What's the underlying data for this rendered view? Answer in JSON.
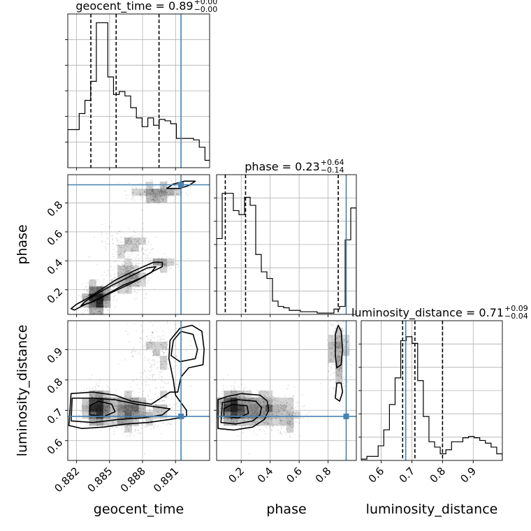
{
  "chart_data": {
    "type": "corner",
    "parameters": [
      "geocent_time",
      "phase",
      "luminosity_distance"
    ],
    "truths": {
      "geocent_time": 0.8915,
      "phase": 0.925,
      "luminosity_distance": 0.68
    },
    "colors": {
      "truth": "#4682b4",
      "hist": "#000000",
      "grid": "#b0b0b0",
      "frame": "#000000"
    },
    "axes": {
      "geocent_time": {
        "lim": [
          0.8812,
          0.8941
        ],
        "ticks": [
          0.882,
          0.885,
          0.888,
          0.891
        ],
        "tick_labels": [
          "0.882",
          "0.885",
          "0.888",
          "0.891"
        ]
      },
      "phase": {
        "lim": [
          0.03,
          0.995
        ],
        "ticks": [
          0.2,
          0.4,
          0.6,
          0.8
        ],
        "tick_labels": [
          "0.2",
          "0.4",
          "0.6",
          "0.8"
        ]
      },
      "luminosity_distance": {
        "lim": [
          0.535,
          0.995
        ],
        "ticks": [
          0.6,
          0.7,
          0.8,
          0.9
        ],
        "tick_labels": [
          "0.6",
          "0.7",
          "0.8",
          "0.9"
        ]
      }
    },
    "titles": {
      "geocent_time": {
        "main": "geocent_time = 0.89",
        "plus": "+0.00",
        "minus": "−0.00"
      },
      "phase": {
        "main": "phase = 0.23",
        "plus": "+0.64",
        "minus": "−0.14"
      },
      "luminosity_distance": {
        "main": "luminosity_distance = 0.71",
        "plus": "+0.09",
        "minus": "−0.04"
      }
    },
    "hist1d": {
      "geocent_time": {
        "edges": [
          0.8812,
          0.88172,
          0.88224,
          0.88276,
          0.88328,
          0.8838,
          0.88432,
          0.88484,
          0.88536,
          0.88588,
          0.8864,
          0.88692,
          0.88744,
          0.88796,
          0.88848,
          0.889,
          0.88952,
          0.89004,
          0.89056,
          0.89108,
          0.8916,
          0.89212,
          0.89264,
          0.89316,
          0.89368,
          0.8942
        ],
        "counts": [
          0.26,
          0.26,
          0.37,
          0.46,
          0.59,
          0.99,
          0.99,
          0.62,
          0.5,
          0.52,
          0.49,
          0.41,
          0.34,
          0.28,
          0.34,
          0.29,
          0.33,
          0.32,
          0.3,
          0.2,
          0.2,
          0.2,
          0.19,
          0.14,
          0.05
        ],
        "quantiles": [
          0.8833,
          0.8856,
          0.8895
        ]
      },
      "phase": {
        "edges": [
          0.03,
          0.0686,
          0.1072,
          0.1458,
          0.1844,
          0.223,
          0.2616,
          0.3002,
          0.3388,
          0.3774,
          0.416,
          0.4546,
          0.4932,
          0.5318,
          0.5704,
          0.609,
          0.6476,
          0.6862,
          0.7248,
          0.7634,
          0.802,
          0.8406,
          0.8792,
          0.9178,
          0.9564,
          0.995
        ],
        "counts": [
          0.57,
          0.91,
          0.91,
          0.78,
          0.75,
          0.88,
          0.82,
          0.45,
          0.32,
          0.27,
          0.1,
          0.06,
          0.05,
          0.03,
          0.03,
          0.02,
          0.02,
          0.02,
          0.01,
          0.01,
          0.01,
          0.04,
          0.06,
          0.56,
          0.8
        ],
        "quantiles": [
          0.09,
          0.23,
          0.87
        ]
      },
      "luminosity_distance": {
        "edges": [
          0.535,
          0.5534,
          0.5718,
          0.5902,
          0.6086,
          0.627,
          0.6454,
          0.6638,
          0.6822,
          0.7006,
          0.719,
          0.7374,
          0.7558,
          0.7742,
          0.7926,
          0.811,
          0.8294,
          0.8478,
          0.8662,
          0.8846,
          0.903,
          0.9214,
          0.9398,
          0.9582,
          0.9766,
          0.995
        ],
        "counts": [
          0.01,
          0.03,
          0.03,
          0.11,
          0.23,
          0.42,
          0.62,
          0.9,
          0.93,
          0.88,
          0.6,
          0.33,
          0.14,
          0.1,
          0.05,
          0.08,
          0.14,
          0.14,
          0.17,
          0.18,
          0.17,
          0.15,
          0.13,
          0.1,
          0.05
        ],
        "quantiles": [
          0.67,
          0.71,
          0.8
        ]
      }
    },
    "density_components": [
      {
        "mean": {
          "geocent_time": 0.8839,
          "phase": 0.14,
          "luminosity_distance": 0.71
        },
        "sd": {
          "geocent_time": 0.0006,
          "phase": 0.05,
          "luminosity_distance": 0.028
        },
        "weight": 0.38
      },
      {
        "mean": {
          "geocent_time": 0.8866,
          "phase": 0.29,
          "luminosity_distance": 0.7
        },
        "sd": {
          "geocent_time": 0.0009,
          "phase": 0.06,
          "luminosity_distance": 0.03
        },
        "weight": 0.22
      },
      {
        "mean": {
          "geocent_time": 0.8897,
          "phase": 0.38,
          "luminosity_distance": 0.7
        },
        "sd": {
          "geocent_time": 0.0007,
          "phase": 0.025,
          "luminosity_distance": 0.03
        },
        "weight": 0.08
      },
      {
        "mean": {
          "geocent_time": 0.8893,
          "phase": 0.87,
          "luminosity_distance": 0.89
        },
        "sd": {
          "geocent_time": 0.0012,
          "phase": 0.035,
          "luminosity_distance": 0.06
        },
        "weight": 0.2
      },
      {
        "mean": {
          "geocent_time": 0.8868,
          "phase": 0.51,
          "luminosity_distance": 0.69
        },
        "sd": {
          "geocent_time": 0.0012,
          "phase": 0.05,
          "luminosity_distance": 0.035
        },
        "weight": 0.12
      }
    ],
    "contours": {
      "phase|geocent_time": [
        [
          [
            0.8818,
            0.06
          ],
          [
            0.8828,
            0.1
          ],
          [
            0.8838,
            0.13
          ],
          [
            0.885,
            0.18
          ],
          [
            0.8862,
            0.23
          ],
          [
            0.8878,
            0.28
          ],
          [
            0.889,
            0.33
          ],
          [
            0.8898,
            0.36
          ],
          [
            0.8898,
            0.39
          ],
          [
            0.889,
            0.39
          ],
          [
            0.8872,
            0.33
          ],
          [
            0.8856,
            0.27
          ],
          [
            0.8842,
            0.2
          ],
          [
            0.8832,
            0.15
          ],
          [
            0.882,
            0.1
          ],
          [
            0.8815,
            0.07
          ]
        ],
        [
          [
            0.8824,
            0.09
          ],
          [
            0.8836,
            0.12
          ],
          [
            0.8846,
            0.16
          ],
          [
            0.886,
            0.21
          ],
          [
            0.8874,
            0.26
          ],
          [
            0.8888,
            0.32
          ],
          [
            0.8892,
            0.36
          ],
          [
            0.8884,
            0.35
          ],
          [
            0.8868,
            0.29
          ],
          [
            0.8852,
            0.23
          ],
          [
            0.8838,
            0.17
          ],
          [
            0.8828,
            0.12
          ]
        ],
        [
          [
            0.8914,
            0.9
          ],
          [
            0.8922,
            0.92
          ],
          [
            0.8928,
            0.95
          ],
          [
            0.8918,
            0.95
          ],
          [
            0.8908,
            0.93
          ],
          [
            0.8902,
            0.9
          ]
        ]
      ],
      "luminosity_distance|geocent_time": [
        [
          [
            0.8813,
            0.65
          ],
          [
            0.8825,
            0.64
          ],
          [
            0.8845,
            0.645
          ],
          [
            0.8865,
            0.655
          ],
          [
            0.8885,
            0.66
          ],
          [
            0.8905,
            0.67
          ],
          [
            0.892,
            0.68
          ],
          [
            0.892,
            0.7
          ],
          [
            0.891,
            0.75
          ],
          [
            0.8908,
            0.8
          ],
          [
            0.8904,
            0.87
          ],
          [
            0.8905,
            0.93
          ],
          [
            0.8914,
            0.97
          ],
          [
            0.8925,
            0.98
          ],
          [
            0.8934,
            0.96
          ],
          [
            0.8936,
            0.9
          ],
          [
            0.8935,
            0.85
          ],
          [
            0.8922,
            0.84
          ],
          [
            0.8915,
            0.81
          ],
          [
            0.8912,
            0.76
          ],
          [
            0.8905,
            0.76
          ],
          [
            0.8888,
            0.72
          ],
          [
            0.887,
            0.73
          ],
          [
            0.8855,
            0.75
          ],
          [
            0.8835,
            0.76
          ],
          [
            0.8815,
            0.755
          ]
        ],
        [
          [
            0.8815,
            0.665
          ],
          [
            0.8835,
            0.66
          ],
          [
            0.8858,
            0.67
          ],
          [
            0.888,
            0.675
          ],
          [
            0.8898,
            0.685
          ],
          [
            0.8905,
            0.705
          ],
          [
            0.8895,
            0.71
          ],
          [
            0.8875,
            0.72
          ],
          [
            0.8855,
            0.735
          ],
          [
            0.8835,
            0.74
          ],
          [
            0.8816,
            0.74
          ]
        ],
        [
          [
            0.8832,
            0.685
          ],
          [
            0.8845,
            0.68
          ],
          [
            0.8855,
            0.695
          ],
          [
            0.8852,
            0.72
          ],
          [
            0.884,
            0.73
          ],
          [
            0.8832,
            0.715
          ]
        ],
        [
          [
            0.8906,
            0.88
          ],
          [
            0.8914,
            0.86
          ],
          [
            0.8928,
            0.87
          ],
          [
            0.893,
            0.9
          ],
          [
            0.8926,
            0.95
          ],
          [
            0.8915,
            0.96
          ],
          [
            0.8908,
            0.93
          ]
        ]
      ],
      "luminosity_distance|phase": [
        [
          [
            0.04,
            0.64
          ],
          [
            0.15,
            0.635
          ],
          [
            0.28,
            0.645
          ],
          [
            0.36,
            0.67
          ],
          [
            0.39,
            0.7
          ],
          [
            0.38,
            0.73
          ],
          [
            0.33,
            0.75
          ],
          [
            0.2,
            0.755
          ],
          [
            0.1,
            0.745
          ],
          [
            0.04,
            0.735
          ]
        ],
        [
          [
            0.06,
            0.66
          ],
          [
            0.16,
            0.655
          ],
          [
            0.28,
            0.665
          ],
          [
            0.33,
            0.685
          ],
          [
            0.34,
            0.71
          ],
          [
            0.3,
            0.73
          ],
          [
            0.18,
            0.735
          ],
          [
            0.07,
            0.725
          ]
        ],
        [
          [
            0.08,
            0.68
          ],
          [
            0.18,
            0.675
          ],
          [
            0.25,
            0.69
          ],
          [
            0.24,
            0.715
          ],
          [
            0.14,
            0.72
          ],
          [
            0.08,
            0.705
          ]
        ],
        [
          [
            0.86,
            0.84
          ],
          [
            0.89,
            0.85
          ],
          [
            0.9,
            0.9
          ],
          [
            0.89,
            0.96
          ],
          [
            0.87,
            0.98
          ],
          [
            0.85,
            0.95
          ],
          [
            0.85,
            0.88
          ]
        ],
        [
          [
            0.85,
            0.74
          ],
          [
            0.88,
            0.73
          ],
          [
            0.9,
            0.76
          ],
          [
            0.89,
            0.79
          ],
          [
            0.86,
            0.79
          ]
        ]
      ]
    }
  }
}
